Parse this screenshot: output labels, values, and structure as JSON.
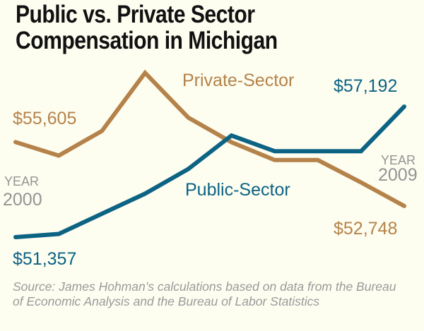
{
  "chart_data": {
    "type": "line",
    "title": "Public vs. Private Sector Compensation in Michigan",
    "x": [
      2000,
      2001,
      2002,
      2003,
      2004,
      2005,
      2006,
      2007,
      2008,
      2009
    ],
    "xlabel": "",
    "ylabel": "",
    "ylim": [
      50500,
      59500
    ],
    "grid": false,
    "legend": "inline labels",
    "series": [
      {
        "name": "Private-Sector",
        "color": "#b5834a",
        "values": [
          55605,
          55000,
          56100,
          58700,
          56700,
          55600,
          54800,
          54800,
          53800,
          52748
        ]
      },
      {
        "name": "Public-Sector",
        "color": "#0d6384",
        "values": [
          51357,
          51500,
          52400,
          53300,
          54400,
          55900,
          55200,
          55200,
          55200,
          57192
        ]
      }
    ],
    "annotations": {
      "private_start": "$55,605",
      "private_end": "$52,748",
      "public_start": "$51,357",
      "public_end": "$57,192",
      "year_word": "YEAR",
      "start_year": "2000",
      "end_year": "2009"
    },
    "source": "Source: James Hohman’s calculations based on data from the Bureau of Economic Analysis and the Bureau of Labor Statistics"
  },
  "header": {
    "title_line1": "Public vs. Private Sector",
    "title_line2": "Compensation in Michigan"
  },
  "colors": {
    "background": "#fdfdf0",
    "private": "#b5834a",
    "public": "#0d6384",
    "year_label": "#949494",
    "source": "#9a9a9a"
  }
}
